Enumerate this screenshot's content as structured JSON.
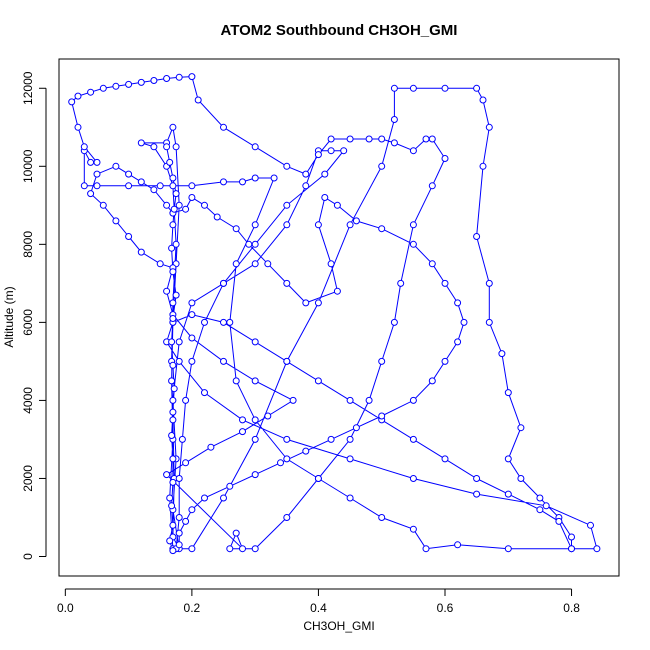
{
  "chart_data": {
    "type": "scatter",
    "title": "ATOM2 Southbound CH3OH_GMI",
    "xlabel": "CH3OH_GMI",
    "ylabel": "Altitude (m)",
    "xlim": [
      -0.01,
      0.875
    ],
    "ylim": [
      -500,
      12750
    ],
    "x_ticks": [
      0.0,
      0.2,
      0.4,
      0.6,
      0.8
    ],
    "x_tick_labels": [
      "0.0",
      "0.2",
      "0.4",
      "0.6",
      "0.8"
    ],
    "y_ticks": [
      0,
      2000,
      4000,
      6000,
      8000,
      10000,
      12000
    ],
    "y_tick_labels": [
      "0",
      "2000",
      "4000",
      "6000",
      "8000",
      "10000",
      "12000"
    ],
    "grid": false,
    "marker": "open-circle",
    "connected": true,
    "color": "#0000ff",
    "series": [
      {
        "points": [
          [
            0.17,
            200
          ],
          [
            0.165,
            1500
          ],
          [
            0.17,
            3000
          ],
          [
            0.168,
            4500
          ],
          [
            0.17,
            6000
          ],
          [
            0.175,
            7500
          ],
          [
            0.18,
            9000
          ],
          [
            0.175,
            10500
          ],
          [
            0.17,
            11000
          ],
          [
            0.16,
            10600
          ],
          [
            0.12,
            10600
          ],
          [
            0.14,
            10500
          ],
          [
            0.16,
            10000
          ],
          [
            0.17,
            9500
          ],
          [
            0.175,
            8000
          ],
          [
            0.17,
            6500
          ],
          [
            0.168,
            5000
          ],
          [
            0.17,
            3500
          ],
          [
            0.172,
            2000
          ],
          [
            0.17,
            500
          ],
          [
            0.18,
            200
          ],
          [
            0.17,
            1200
          ],
          [
            0.175,
            2500
          ],
          [
            0.17,
            4000
          ],
          [
            0.18,
            5500
          ],
          [
            0.2,
            6500
          ],
          [
            0.25,
            7000
          ],
          [
            0.3,
            7500
          ],
          [
            0.35,
            8500
          ],
          [
            0.38,
            9500
          ],
          [
            0.4,
            10400
          ],
          [
            0.42,
            10400
          ],
          [
            0.44,
            10400
          ],
          [
            0.41,
            9800
          ],
          [
            0.35,
            9000
          ],
          [
            0.3,
            8000
          ],
          [
            0.25,
            7000
          ],
          [
            0.22,
            6000
          ],
          [
            0.2,
            5000
          ],
          [
            0.19,
            4000
          ],
          [
            0.185,
            3000
          ],
          [
            0.18,
            2000
          ],
          [
            0.18,
            1000
          ],
          [
            0.175,
            200
          ],
          [
            0.2,
            200
          ],
          [
            0.25,
            1500
          ],
          [
            0.3,
            3000
          ],
          [
            0.35,
            5000
          ],
          [
            0.4,
            6500
          ],
          [
            0.45,
            8500
          ],
          [
            0.5,
            10000
          ],
          [
            0.52,
            11200
          ],
          [
            0.52,
            12000
          ],
          [
            0.55,
            12000
          ],
          [
            0.6,
            12000
          ],
          [
            0.65,
            12000
          ],
          [
            0.66,
            11700
          ],
          [
            0.67,
            11000
          ],
          [
            0.66,
            10000
          ],
          [
            0.65,
            8200
          ],
          [
            0.67,
            7000
          ],
          [
            0.67,
            6000
          ],
          [
            0.69,
            5200
          ],
          [
            0.7,
            4200
          ],
          [
            0.72,
            3300
          ],
          [
            0.7,
            2500
          ],
          [
            0.72,
            2000
          ],
          [
            0.75,
            1500
          ],
          [
            0.78,
            1000
          ],
          [
            0.8,
            500
          ],
          [
            0.8,
            200
          ],
          [
            0.84,
            200
          ],
          [
            0.83,
            800
          ],
          [
            0.76,
            1300
          ],
          [
            0.65,
            1600
          ],
          [
            0.55,
            2000
          ],
          [
            0.45,
            2500
          ],
          [
            0.35,
            3000
          ],
          [
            0.28,
            3500
          ],
          [
            0.22,
            4200
          ],
          [
            0.18,
            5000
          ],
          [
            0.16,
            5500
          ],
          [
            0.17,
            6000
          ],
          [
            0.2,
            6200
          ],
          [
            0.25,
            6000
          ],
          [
            0.3,
            5500
          ],
          [
            0.35,
            5000
          ],
          [
            0.4,
            4500
          ],
          [
            0.45,
            4000
          ],
          [
            0.5,
            3500
          ],
          [
            0.55,
            3000
          ],
          [
            0.6,
            2500
          ],
          [
            0.65,
            2000
          ],
          [
            0.7,
            1600
          ],
          [
            0.75,
            1200
          ],
          [
            0.78,
            900
          ],
          [
            0.8,
            200
          ],
          [
            0.7,
            200
          ],
          [
            0.62,
            300
          ],
          [
            0.57,
            200
          ],
          [
            0.55,
            700
          ],
          [
            0.5,
            1000
          ],
          [
            0.45,
            1500
          ],
          [
            0.4,
            2000
          ],
          [
            0.35,
            2500
          ],
          [
            0.3,
            3500
          ],
          [
            0.27,
            4500
          ],
          [
            0.26,
            6000
          ],
          [
            0.27,
            7500
          ],
          [
            0.3,
            8500
          ],
          [
            0.33,
            9700
          ],
          [
            0.3,
            9700
          ],
          [
            0.28,
            9600
          ],
          [
            0.25,
            9600
          ],
          [
            0.2,
            9500
          ],
          [
            0.15,
            9500
          ],
          [
            0.1,
            9500
          ],
          [
            0.05,
            9500
          ],
          [
            0.03,
            9500
          ],
          [
            0.03,
            10400
          ],
          [
            0.04,
            10100
          ],
          [
            0.05,
            10100
          ],
          [
            0.03,
            10500
          ],
          [
            0.02,
            11000
          ],
          [
            0.01,
            11650
          ],
          [
            0.02,
            11800
          ],
          [
            0.04,
            11900
          ],
          [
            0.06,
            12000
          ],
          [
            0.08,
            12050
          ],
          [
            0.1,
            12100
          ],
          [
            0.12,
            12150
          ],
          [
            0.14,
            12200
          ],
          [
            0.16,
            12250
          ],
          [
            0.18,
            12280
          ],
          [
            0.2,
            12300
          ],
          [
            0.21,
            11700
          ],
          [
            0.25,
            11000
          ],
          [
            0.3,
            10500
          ],
          [
            0.35,
            10000
          ],
          [
            0.38,
            9800
          ],
          [
            0.4,
            10300
          ],
          [
            0.42,
            10700
          ],
          [
            0.45,
            10700
          ],
          [
            0.48,
            10700
          ],
          [
            0.5,
            10700
          ],
          [
            0.52,
            10600
          ],
          [
            0.55,
            10400
          ],
          [
            0.57,
            10700
          ],
          [
            0.58,
            10700
          ],
          [
            0.6,
            10200
          ],
          [
            0.58,
            9500
          ],
          [
            0.55,
            8500
          ],
          [
            0.53,
            7000
          ],
          [
            0.52,
            6000
          ],
          [
            0.5,
            5000
          ],
          [
            0.48,
            4000
          ],
          [
            0.45,
            3000
          ],
          [
            0.4,
            2000
          ],
          [
            0.35,
            1000
          ],
          [
            0.3,
            200
          ],
          [
            0.26,
            200
          ],
          [
            0.27,
            600
          ],
          [
            0.28,
            200
          ],
          [
            0.16,
            2100
          ],
          [
            0.19,
            2400
          ],
          [
            0.23,
            2800
          ],
          [
            0.28,
            3200
          ],
          [
            0.32,
            3600
          ],
          [
            0.36,
            4000
          ],
          [
            0.3,
            4500
          ],
          [
            0.25,
            5000
          ],
          [
            0.2,
            5600
          ],
          [
            0.17,
            6200
          ],
          [
            0.16,
            6800
          ],
          [
            0.17,
            7400
          ],
          [
            0.15,
            7500
          ],
          [
            0.12,
            7800
          ],
          [
            0.1,
            8200
          ],
          [
            0.08,
            8600
          ],
          [
            0.06,
            9000
          ],
          [
            0.04,
            9300
          ],
          [
            0.05,
            9800
          ],
          [
            0.08,
            10000
          ],
          [
            0.1,
            9800
          ],
          [
            0.12,
            9600
          ],
          [
            0.14,
            9400
          ],
          [
            0.16,
            9000
          ],
          [
            0.17,
            8800
          ],
          [
            0.19,
            8900
          ],
          [
            0.2,
            9200
          ],
          [
            0.22,
            9000
          ],
          [
            0.24,
            8700
          ],
          [
            0.27,
            8400
          ],
          [
            0.29,
            8000
          ],
          [
            0.32,
            7500
          ],
          [
            0.35,
            7000
          ],
          [
            0.38,
            6500
          ],
          [
            0.43,
            6800
          ],
          [
            0.42,
            7500
          ],
          [
            0.4,
            8500
          ],
          [
            0.41,
            9200
          ],
          [
            0.43,
            9000
          ],
          [
            0.46,
            8600
          ],
          [
            0.5,
            8400
          ],
          [
            0.55,
            8000
          ],
          [
            0.58,
            7500
          ],
          [
            0.6,
            7000
          ],
          [
            0.62,
            6500
          ],
          [
            0.63,
            6000
          ],
          [
            0.62,
            5500
          ],
          [
            0.6,
            5000
          ],
          [
            0.58,
            4500
          ],
          [
            0.55,
            4000
          ],
          [
            0.5,
            3600
          ],
          [
            0.46,
            3300
          ],
          [
            0.42,
            3000
          ],
          [
            0.38,
            2700
          ],
          [
            0.34,
            2400
          ],
          [
            0.3,
            2100
          ],
          [
            0.26,
            1800
          ],
          [
            0.22,
            1500
          ],
          [
            0.2,
            1200
          ],
          [
            0.19,
            900
          ],
          [
            0.18,
            600
          ],
          [
            0.18,
            300
          ],
          [
            0.17,
            150
          ],
          [
            0.165,
            400
          ],
          [
            0.17,
            800
          ],
          [
            0.168,
            1300
          ],
          [
            0.17,
            1900
          ],
          [
            0.17,
            2500
          ],
          [
            0.168,
            3100
          ],
          [
            0.17,
            3700
          ],
          [
            0.172,
            4300
          ],
          [
            0.17,
            4900
          ],
          [
            0.168,
            5500
          ],
          [
            0.17,
            6100
          ],
          [
            0.175,
            6700
          ],
          [
            0.17,
            7300
          ],
          [
            0.168,
            7900
          ],
          [
            0.17,
            8500
          ],
          [
            0.172,
            8900
          ],
          [
            0.175,
            9300
          ],
          [
            0.17,
            9700
          ],
          [
            0.165,
            10100
          ],
          [
            0.16,
            10500
          ]
        ]
      }
    ]
  }
}
